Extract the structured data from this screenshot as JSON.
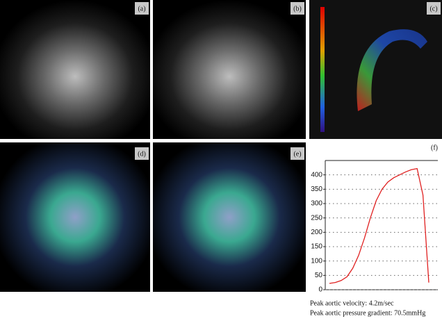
{
  "panels": {
    "a": "(a)",
    "b": "(b)",
    "c": "(c)",
    "d": "(d)",
    "e": "(e)",
    "f": "(f)"
  },
  "chart_data": {
    "type": "line",
    "categories": [
      null,
      null,
      null,
      null,
      null,
      null,
      null,
      null,
      null,
      null,
      null,
      null,
      null,
      null,
      null,
      null,
      null,
      null
    ],
    "series": [
      {
        "color": "#e02020",
        "values": [
          22,
          25,
          32,
          45,
          75,
          120,
          180,
          250,
          310,
          350,
          375,
          390,
          400,
          410,
          418,
          422,
          330,
          25
        ]
      }
    ],
    "ylim": [
      0,
      450
    ],
    "yticks": [
      0,
      50,
      100,
      150,
      200,
      250,
      300,
      350,
      400
    ],
    "grid": true
  },
  "caption": [
    "Peak aortic velocity: 4.2m/sec",
    "Peak aortic pressure gradient: 70.5mmHg"
  ]
}
